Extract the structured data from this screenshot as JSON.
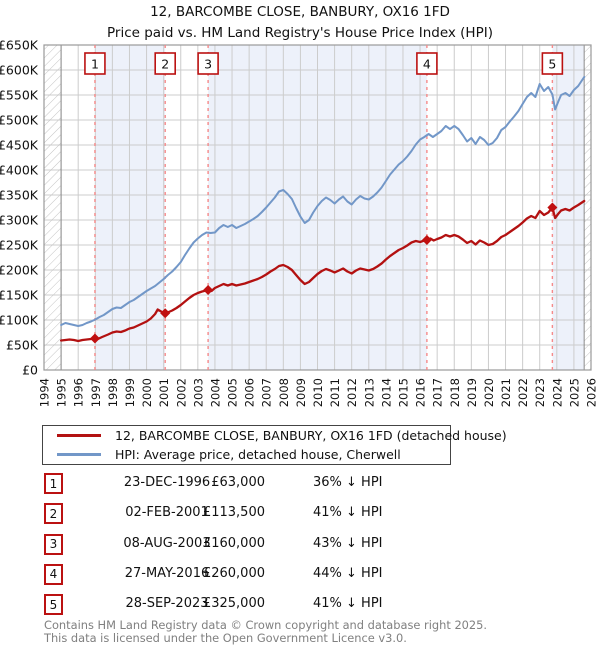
{
  "title": {
    "line1": "12, BARCOMBE CLOSE, BANBURY, OX16 1FD",
    "line2": "Price paid vs. HM Land Registry's House Price Index (HPI)"
  },
  "legend": {
    "items": [
      {
        "id": "property",
        "label": "12, BARCOMBE CLOSE, BANBURY, OX16 1FD (detached house)",
        "color": "#b31111"
      },
      {
        "id": "hpi",
        "label": "HPI: Average price, detached house, Cherwell",
        "color": "#7297c8"
      }
    ]
  },
  "table": {
    "rows": [
      {
        "num": "1",
        "date": "23-DEC-1996",
        "price": "£63,000",
        "hpi": "36% ↓ HPI"
      },
      {
        "num": "2",
        "date": "02-FEB-2001",
        "price": "£113,500",
        "hpi": "41% ↓ HPI"
      },
      {
        "num": "3",
        "date": "08-AUG-2003",
        "price": "£160,000",
        "hpi": "43% ↓ HPI"
      },
      {
        "num": "4",
        "date": "27-MAY-2016",
        "price": "£260,000",
        "hpi": "44% ↓ HPI"
      },
      {
        "num": "5",
        "date": "28-SEP-2023",
        "price": "£325,000",
        "hpi": "41% ↓ HPI"
      }
    ]
  },
  "footer": {
    "line1": "Contains HM Land Registry data © Crown copyright and database right 2025.",
    "line2": "This data is licensed under the Open Government Licence v3.0."
  },
  "chart_data": {
    "type": "line",
    "title": "12, BARCOMBE CLOSE, BANBURY, OX16 1FD — Price paid vs. HPI",
    "values_unit": "GBP_thousands",
    "x_range": [
      1994,
      2026
    ],
    "y_range_thousands": [
      0,
      650
    ],
    "y_tick_step_thousands": 50,
    "y_tick_labels": [
      "£0",
      "£50K",
      "£100K",
      "£150K",
      "£200K",
      "£250K",
      "£300K",
      "£350K",
      "£400K",
      "£450K",
      "£500K",
      "£550K",
      "£600K",
      "£650K"
    ],
    "x_tick_labels": [
      "1994",
      "1995",
      "1996",
      "1997",
      "1998",
      "1999",
      "2000",
      "2001",
      "2002",
      "2003",
      "2004",
      "2005",
      "2006",
      "2007",
      "2008",
      "2009",
      "2010",
      "2011",
      "2012",
      "2013",
      "2014",
      "2015",
      "2016",
      "2017",
      "2018",
      "2019",
      "2020",
      "2021",
      "2022",
      "2023",
      "2024",
      "2025",
      "2026"
    ],
    "grid": true,
    "legend_position": "bottom",
    "colors": {
      "property_line": "#b31111",
      "hpi_line": "#7297c8",
      "sale_marker": "#c01010",
      "sale_dashed_line": "#f58a8a",
      "sale_badge_border": "#bb1111",
      "band_fill": "#edf1fa",
      "grid_line": "#cccccc",
      "frame": "#999999",
      "hatch_line": "#c4c4c4"
    },
    "shaded_bands_years": [
      [
        1996.98,
        2001.09
      ],
      [
        2003.6,
        2016.4
      ],
      [
        2023.74,
        2025.6
      ]
    ],
    "hatch_bands_years": [
      [
        1994.0,
        1995.0
      ],
      [
        2025.6,
        2026.0
      ]
    ],
    "sales": [
      {
        "label": "1",
        "date": "23-DEC-1996",
        "year": 1996.98,
        "price_thousands": 63,
        "pct_below_hpi": 36
      },
      {
        "label": "2",
        "date": "02-FEB-2001",
        "year": 2001.09,
        "price_thousands": 113.5,
        "pct_below_hpi": 41
      },
      {
        "label": "3",
        "date": "08-AUG-2003",
        "year": 2003.6,
        "price_thousands": 160,
        "pct_below_hpi": 43
      },
      {
        "label": "4",
        "date": "27-MAY-2016",
        "year": 2016.4,
        "price_thousands": 260,
        "pct_below_hpi": 44
      },
      {
        "label": "5",
        "date": "28-SEP-2023",
        "year": 2023.74,
        "price_thousands": 325,
        "pct_below_hpi": 41
      }
    ],
    "series": [
      {
        "name": "12, BARCOMBE CLOSE, BANBURY, OX16 1FD (detached house)",
        "color": "#b31111",
        "width": 2.3,
        "points": [
          [
            1995.0,
            59
          ],
          [
            1995.25,
            60
          ],
          [
            1995.5,
            61
          ],
          [
            1995.75,
            60
          ],
          [
            1996.0,
            58
          ],
          [
            1996.25,
            60
          ],
          [
            1996.5,
            61
          ],
          [
            1996.75,
            62
          ],
          [
            1996.98,
            63
          ],
          [
            1997.15,
            62
          ],
          [
            1997.4,
            66
          ],
          [
            1997.75,
            71
          ],
          [
            1998.0,
            75
          ],
          [
            1998.25,
            77
          ],
          [
            1998.5,
            76
          ],
          [
            1998.75,
            79
          ],
          [
            1999.0,
            83
          ],
          [
            1999.25,
            85
          ],
          [
            1999.5,
            89
          ],
          [
            1999.75,
            93
          ],
          [
            2000.0,
            97
          ],
          [
            2000.25,
            103
          ],
          [
            2000.5,
            112
          ],
          [
            2000.65,
            121
          ],
          [
            2000.85,
            117
          ],
          [
            2001.09,
            113.5
          ],
          [
            2001.3,
            116
          ],
          [
            2001.5,
            119
          ],
          [
            2001.75,
            124
          ],
          [
            2002.0,
            130
          ],
          [
            2002.25,
            137
          ],
          [
            2002.5,
            144
          ],
          [
            2002.75,
            150
          ],
          [
            2003.0,
            154
          ],
          [
            2003.25,
            157
          ],
          [
            2003.6,
            160
          ],
          [
            2003.8,
            158
          ],
          [
            2004.0,
            164
          ],
          [
            2004.25,
            168
          ],
          [
            2004.5,
            172
          ],
          [
            2004.75,
            169
          ],
          [
            2005.0,
            172
          ],
          [
            2005.25,
            169
          ],
          [
            2005.5,
            171
          ],
          [
            2005.75,
            173
          ],
          [
            2006.0,
            176
          ],
          [
            2006.25,
            179
          ],
          [
            2006.5,
            182
          ],
          [
            2006.75,
            186
          ],
          [
            2007.0,
            191
          ],
          [
            2007.25,
            197
          ],
          [
            2007.5,
            202
          ],
          [
            2007.75,
            208
          ],
          [
            2008.0,
            210
          ],
          [
            2008.25,
            206
          ],
          [
            2008.5,
            200
          ],
          [
            2008.75,
            190
          ],
          [
            2009.0,
            180
          ],
          [
            2009.25,
            172
          ],
          [
            2009.5,
            176
          ],
          [
            2009.75,
            184
          ],
          [
            2010.0,
            192
          ],
          [
            2010.25,
            198
          ],
          [
            2010.5,
            202
          ],
          [
            2010.75,
            199
          ],
          [
            2011.0,
            195
          ],
          [
            2011.25,
            199
          ],
          [
            2011.5,
            203
          ],
          [
            2011.75,
            197
          ],
          [
            2012.0,
            193
          ],
          [
            2012.25,
            199
          ],
          [
            2012.5,
            203
          ],
          [
            2012.75,
            201
          ],
          [
            2013.0,
            199
          ],
          [
            2013.25,
            202
          ],
          [
            2013.5,
            207
          ],
          [
            2013.75,
            213
          ],
          [
            2014.0,
            221
          ],
          [
            2014.25,
            228
          ],
          [
            2014.5,
            234
          ],
          [
            2014.75,
            240
          ],
          [
            2015.0,
            244
          ],
          [
            2015.25,
            249
          ],
          [
            2015.5,
            255
          ],
          [
            2015.75,
            258
          ],
          [
            2016.0,
            256
          ],
          [
            2016.25,
            259
          ],
          [
            2016.4,
            260
          ],
          [
            2016.6,
            263
          ],
          [
            2016.8,
            259
          ],
          [
            2017.0,
            262
          ],
          [
            2017.25,
            265
          ],
          [
            2017.5,
            270
          ],
          [
            2017.75,
            267
          ],
          [
            2018.0,
            270
          ],
          [
            2018.25,
            267
          ],
          [
            2018.5,
            261
          ],
          [
            2018.75,
            254
          ],
          [
            2019.0,
            258
          ],
          [
            2019.25,
            251
          ],
          [
            2019.5,
            259
          ],
          [
            2019.75,
            255
          ],
          [
            2020.0,
            250
          ],
          [
            2020.25,
            252
          ],
          [
            2020.5,
            258
          ],
          [
            2020.75,
            266
          ],
          [
            2021.0,
            270
          ],
          [
            2021.25,
            276
          ],
          [
            2021.5,
            282
          ],
          [
            2021.75,
            288
          ],
          [
            2022.0,
            295
          ],
          [
            2022.25,
            303
          ],
          [
            2022.5,
            308
          ],
          [
            2022.75,
            304
          ],
          [
            2023.0,
            318
          ],
          [
            2023.25,
            310
          ],
          [
            2023.5,
            315
          ],
          [
            2023.74,
            325
          ],
          [
            2023.9,
            304
          ],
          [
            2024.1,
            313
          ],
          [
            2024.25,
            319
          ],
          [
            2024.5,
            322
          ],
          [
            2024.75,
            319
          ],
          [
            2025.0,
            325
          ],
          [
            2025.25,
            330
          ],
          [
            2025.6,
            338
          ]
        ]
      },
      {
        "name": "HPI: Average price, detached house, Cherwell",
        "color": "#7297c8",
        "width": 2.0,
        "points": [
          [
            1995.0,
            90
          ],
          [
            1995.25,
            94
          ],
          [
            1995.5,
            92
          ],
          [
            1995.75,
            90
          ],
          [
            1996.0,
            88
          ],
          [
            1996.25,
            90
          ],
          [
            1996.5,
            94
          ],
          [
            1996.75,
            97
          ],
          [
            1997.0,
            101
          ],
          [
            1997.25,
            106
          ],
          [
            1997.5,
            110
          ],
          [
            1997.75,
            116
          ],
          [
            1998.0,
            122
          ],
          [
            1998.25,
            125
          ],
          [
            1998.5,
            124
          ],
          [
            1998.75,
            130
          ],
          [
            1999.0,
            136
          ],
          [
            1999.25,
            140
          ],
          [
            1999.5,
            146
          ],
          [
            1999.75,
            152
          ],
          [
            2000.0,
            158
          ],
          [
            2000.25,
            163
          ],
          [
            2000.5,
            168
          ],
          [
            2000.75,
            175
          ],
          [
            2001.0,
            182
          ],
          [
            2001.25,
            190
          ],
          [
            2001.5,
            197
          ],
          [
            2001.75,
            206
          ],
          [
            2002.0,
            216
          ],
          [
            2002.25,
            230
          ],
          [
            2002.5,
            243
          ],
          [
            2002.75,
            255
          ],
          [
            2003.0,
            263
          ],
          [
            2003.25,
            270
          ],
          [
            2003.5,
            275
          ],
          [
            2003.75,
            274
          ],
          [
            2004.0,
            275
          ],
          [
            2004.25,
            284
          ],
          [
            2004.5,
            290
          ],
          [
            2004.75,
            286
          ],
          [
            2005.0,
            290
          ],
          [
            2005.25,
            284
          ],
          [
            2005.5,
            288
          ],
          [
            2005.75,
            292
          ],
          [
            2006.0,
            297
          ],
          [
            2006.25,
            302
          ],
          [
            2006.5,
            308
          ],
          [
            2006.75,
            316
          ],
          [
            2007.0,
            325
          ],
          [
            2007.25,
            335
          ],
          [
            2007.5,
            345
          ],
          [
            2007.75,
            357
          ],
          [
            2008.0,
            360
          ],
          [
            2008.25,
            352
          ],
          [
            2008.5,
            342
          ],
          [
            2008.75,
            324
          ],
          [
            2009.0,
            307
          ],
          [
            2009.25,
            294
          ],
          [
            2009.5,
            300
          ],
          [
            2009.75,
            315
          ],
          [
            2010.0,
            328
          ],
          [
            2010.25,
            338
          ],
          [
            2010.5,
            345
          ],
          [
            2010.75,
            340
          ],
          [
            2011.0,
            333
          ],
          [
            2011.25,
            341
          ],
          [
            2011.5,
            347
          ],
          [
            2011.75,
            337
          ],
          [
            2012.0,
            331
          ],
          [
            2012.25,
            341
          ],
          [
            2012.5,
            348
          ],
          [
            2012.75,
            343
          ],
          [
            2013.0,
            341
          ],
          [
            2013.25,
            347
          ],
          [
            2013.5,
            355
          ],
          [
            2013.75,
            365
          ],
          [
            2014.0,
            378
          ],
          [
            2014.25,
            391
          ],
          [
            2014.5,
            401
          ],
          [
            2014.75,
            411
          ],
          [
            2015.0,
            418
          ],
          [
            2015.25,
            427
          ],
          [
            2015.5,
            438
          ],
          [
            2015.75,
            451
          ],
          [
            2016.0,
            461
          ],
          [
            2016.25,
            466
          ],
          [
            2016.5,
            472
          ],
          [
            2016.75,
            466
          ],
          [
            2017.0,
            472
          ],
          [
            2017.25,
            478
          ],
          [
            2017.5,
            488
          ],
          [
            2017.75,
            482
          ],
          [
            2018.0,
            488
          ],
          [
            2018.25,
            482
          ],
          [
            2018.5,
            470
          ],
          [
            2018.75,
            457
          ],
          [
            2019.0,
            464
          ],
          [
            2019.25,
            452
          ],
          [
            2019.5,
            466
          ],
          [
            2019.75,
            460
          ],
          [
            2020.0,
            450
          ],
          [
            2020.25,
            454
          ],
          [
            2020.5,
            464
          ],
          [
            2020.75,
            480
          ],
          [
            2021.0,
            486
          ],
          [
            2021.25,
            497
          ],
          [
            2021.5,
            507
          ],
          [
            2021.75,
            518
          ],
          [
            2022.0,
            532
          ],
          [
            2022.25,
            546
          ],
          [
            2022.5,
            554
          ],
          [
            2022.75,
            546
          ],
          [
            2023.0,
            572
          ],
          [
            2023.25,
            558
          ],
          [
            2023.5,
            566
          ],
          [
            2023.74,
            551
          ],
          [
            2023.9,
            521
          ],
          [
            2024.1,
            538
          ],
          [
            2024.25,
            550
          ],
          [
            2024.5,
            554
          ],
          [
            2024.75,
            548
          ],
          [
            2025.0,
            560
          ],
          [
            2025.25,
            568
          ],
          [
            2025.6,
            586
          ]
        ]
      }
    ]
  }
}
